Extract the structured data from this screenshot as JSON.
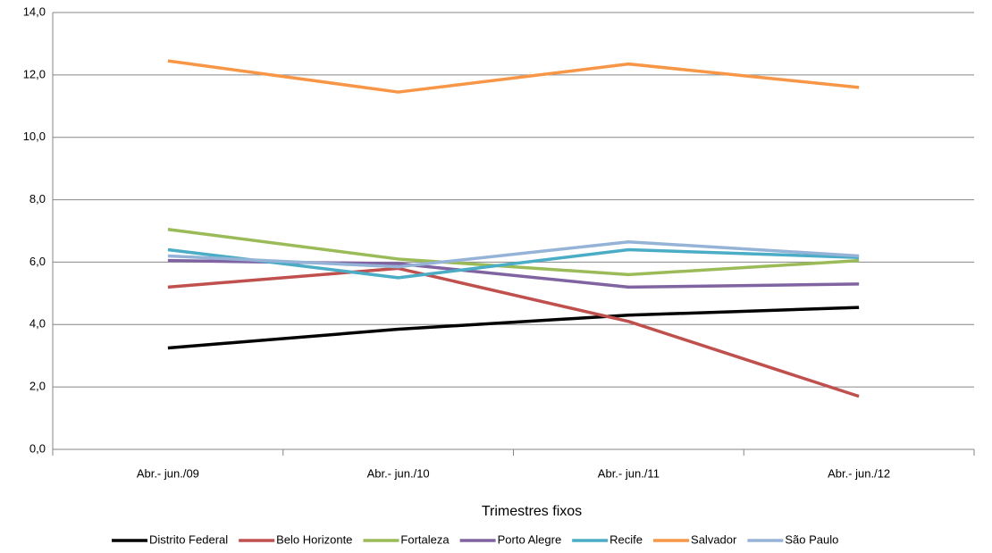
{
  "chart_data": {
    "type": "line",
    "x_label": "Trimestres fixos",
    "categories": [
      "Abr.- jun./09",
      "Abr.- jun./10",
      "Abr.- jun./11",
      "Abr.- jun./12"
    ],
    "series": [
      {
        "name": "Distrito Federal",
        "color": "#000000",
        "values": [
          3.25,
          3.85,
          4.3,
          4.55
        ]
      },
      {
        "name": "Belo Horizonte",
        "color": "#c0504d",
        "values": [
          5.2,
          5.8,
          4.1,
          1.7
        ]
      },
      {
        "name": "Fortaleza",
        "color": "#9bbb59",
        "values": [
          7.05,
          6.1,
          5.6,
          6.05
        ]
      },
      {
        "name": "Porto Alegre",
        "color": "#8064a2",
        "values": [
          6.05,
          5.95,
          5.2,
          5.3
        ]
      },
      {
        "name": "Recife",
        "color": "#4bacc6",
        "values": [
          6.4,
          5.5,
          6.4,
          6.15
        ]
      },
      {
        "name": "Salvador",
        "color": "#f79646",
        "values": [
          12.45,
          11.45,
          12.35,
          11.6
        ]
      },
      {
        "name": "São Paulo",
        "color": "#95b3d7",
        "values": [
          6.2,
          5.85,
          6.65,
          6.2
        ]
      }
    ],
    "ylim": [
      0,
      14
    ],
    "yticks": [
      {
        "value": 0,
        "label": "0,0"
      },
      {
        "value": 2,
        "label": "2,0"
      },
      {
        "value": 4,
        "label": "4,0"
      },
      {
        "value": 6,
        "label": "6,0"
      },
      {
        "value": 8,
        "label": "8,0"
      },
      {
        "value": 10,
        "label": "10,0"
      },
      {
        "value": 12,
        "label": "12,0"
      },
      {
        "value": 14,
        "label": "14,0"
      }
    ],
    "grid": true,
    "legend": "bottom"
  }
}
